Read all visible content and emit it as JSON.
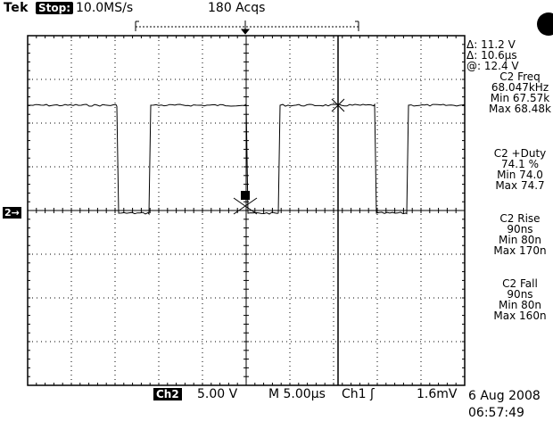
{
  "header": {
    "brand": "Tek",
    "run_state": "Stop:",
    "sample_rate": "10.0MS/s",
    "acquisitions": "180 Acqs"
  },
  "cursors": {
    "delta_v": "Δ: 11.2 V",
    "delta_t": "Δ: 10.6µs",
    "at_v": "@: 12.4 V"
  },
  "measurements": [
    {
      "title": "C2 Freq",
      "value": "68.047kHz",
      "min": "Min 67.57k",
      "max": "Max 68.48k"
    },
    {
      "title": "C2 +Duty",
      "value": "74.1 %",
      "min": "Min 74.0",
      "max": "Max 74.7"
    },
    {
      "title": "C2 Rise",
      "value": "90ns",
      "min": "Min 80n",
      "max": "Max 170n"
    },
    {
      "title": "C2 Fall",
      "value": "90ns",
      "min": "Min 80n",
      "max": "Max 160n"
    }
  ],
  "channel": {
    "marker": "2→",
    "badge": "Ch2",
    "volts_per_div": "5.00 V"
  },
  "timebase": "M 5.00µs",
  "trigger": {
    "source": "Ch1 ʃ",
    "level": "1.6mV"
  },
  "timestamp": {
    "date": "6 Aug 2008",
    "time": "06:57:49"
  },
  "waveform": {
    "channel": "Ch2",
    "duty_percent": 74.1,
    "frequency_khz": 68.047
  }
}
